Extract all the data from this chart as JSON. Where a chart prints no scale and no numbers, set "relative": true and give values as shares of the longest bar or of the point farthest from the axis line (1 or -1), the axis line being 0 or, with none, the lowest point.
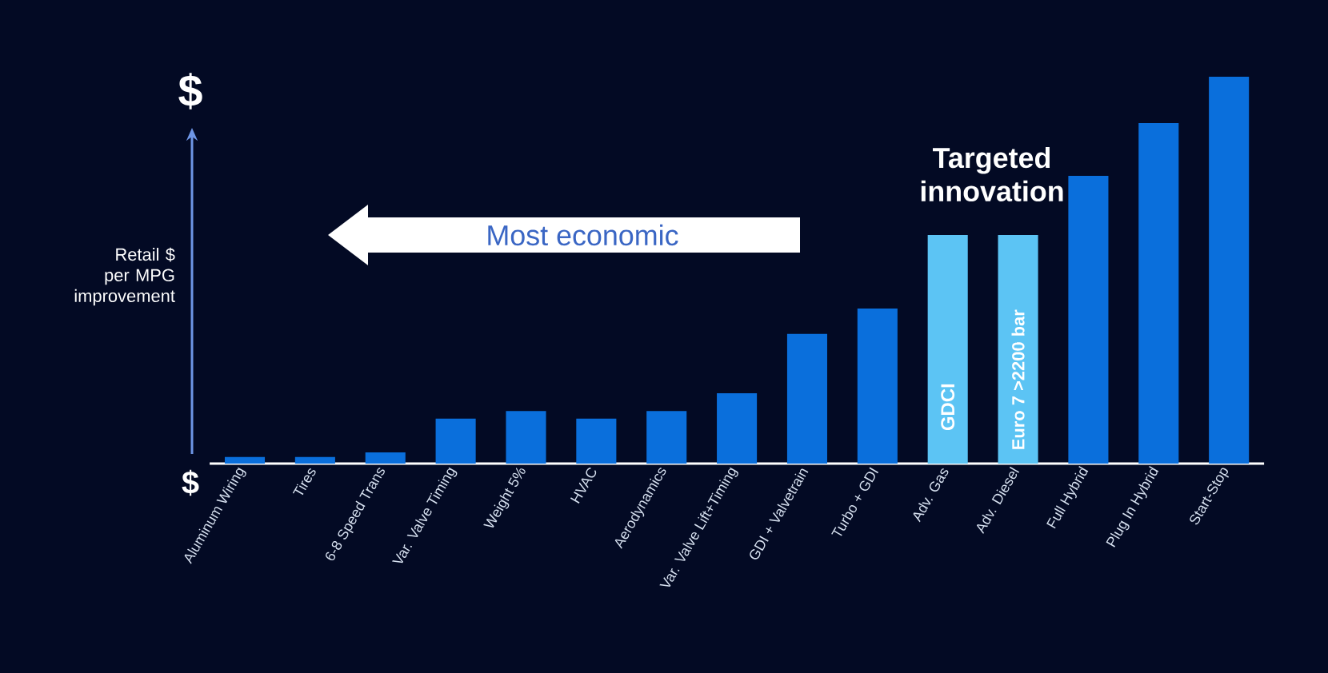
{
  "chart_data": {
    "type": "bar",
    "relative": true,
    "categories": [
      "Aluminum Wiring",
      "Tires",
      "6-8 Speed Trans",
      "Var. Valve Timing",
      "Weight 5%",
      "HVAC",
      "Aerodynamics",
      "Var. Valve Lift+Timing",
      "GDI + Valvetrain",
      "Turbo + GDI",
      "Adv. Gas",
      "Adv. Diesel",
      "Full Hybrid",
      "Plug In Hybrid",
      "Start-Stop"
    ],
    "values": [
      0.017,
      0.017,
      0.029,
      0.116,
      0.136,
      0.116,
      0.136,
      0.182,
      0.335,
      0.401,
      0.591,
      0.591,
      0.744,
      0.88,
      1
    ],
    "colors": [
      "#0a6fdc",
      "#0a6fdc",
      "#0a6fdc",
      "#0a6fdc",
      "#0a6fdc",
      "#0a6fdc",
      "#0a6fdc",
      "#0a6fdc",
      "#0a6fdc",
      "#0a6fdc",
      "#5cc4f4",
      "#5cc4f4",
      "#0a6fdc",
      "#0a6fdc",
      "#0a6fdc"
    ],
    "ylabel": "Retail $ per MPG improvement",
    "annotations": [
      "$",
      "$",
      "Most economic",
      "Targeted innovation",
      "GDCI",
      "Euro 7 >2200 bar"
    ]
  }
}
